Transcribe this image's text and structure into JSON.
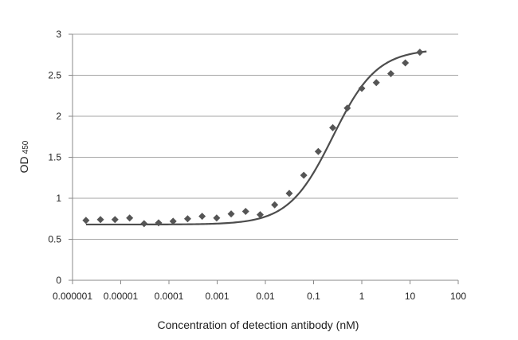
{
  "chart_data": {
    "type": "scatter",
    "title": "",
    "xlabel": "Concentration of detection antibody (nM)",
    "ylabel_main": "OD",
    "ylabel_sub": "450",
    "x_scale": "log",
    "xlim": [
      1e-06,
      100
    ],
    "ylim": [
      0,
      3
    ],
    "x_ticks": [
      1e-06,
      1e-05,
      0.0001,
      0.001,
      0.01,
      0.1,
      1,
      10,
      100
    ],
    "x_tick_labels": [
      "0.000001",
      "0.00001",
      "0.0001",
      "0.001",
      "0.01",
      "0.1",
      "1",
      "10",
      "100"
    ],
    "y_ticks": [
      0,
      0.5,
      1,
      1.5,
      2,
      2.5,
      3
    ],
    "y_tick_labels": [
      "0",
      "0.5",
      "1",
      "1.5",
      "2",
      "2.5",
      "3"
    ],
    "grid": "horizontal",
    "legend": "none",
    "marker_color": "#555555",
    "curve_color": "#4d4d4d",
    "series": [
      {
        "points": [
          {
            "x": 1.9e-06,
            "y": 0.73
          },
          {
            "x": 3.8e-06,
            "y": 0.74
          },
          {
            "x": 7.6e-06,
            "y": 0.74
          },
          {
            "x": 1.53e-05,
            "y": 0.76
          },
          {
            "x": 3.05e-05,
            "y": 0.69
          },
          {
            "x": 6.1e-05,
            "y": 0.7
          },
          {
            "x": 0.000122,
            "y": 0.72
          },
          {
            "x": 0.000244,
            "y": 0.75
          },
          {
            "x": 0.000488,
            "y": 0.78
          },
          {
            "x": 0.000977,
            "y": 0.76
          },
          {
            "x": 0.00195,
            "y": 0.81
          },
          {
            "x": 0.0039,
            "y": 0.84
          },
          {
            "x": 0.0078,
            "y": 0.8
          },
          {
            "x": 0.0156,
            "y": 0.92
          },
          {
            "x": 0.0313,
            "y": 1.06
          },
          {
            "x": 0.0625,
            "y": 1.28
          },
          {
            "x": 0.125,
            "y": 1.57
          },
          {
            "x": 0.25,
            "y": 1.86
          },
          {
            "x": 0.5,
            "y": 2.1
          },
          {
            "x": 1,
            "y": 2.34
          },
          {
            "x": 2,
            "y": 2.41
          },
          {
            "x": 4,
            "y": 2.52
          },
          {
            "x": 8,
            "y": 2.65
          },
          {
            "x": 16,
            "y": 2.78
          }
        ]
      }
    ],
    "fit_curve": {
      "model": "4PL",
      "bottom": 0.68,
      "top": 2.82,
      "ec50": 0.25,
      "hill": 0.95,
      "x_range": [
        1.9e-06,
        22
      ]
    }
  }
}
